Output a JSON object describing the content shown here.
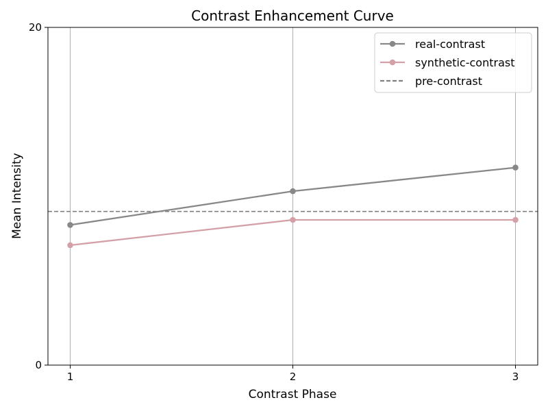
{
  "chart_data": {
    "type": "line",
    "title": "Contrast Enhancement Curve",
    "xlabel": "Contrast Phase",
    "ylabel": "Mean Intensity",
    "x": [
      1,
      2,
      3
    ],
    "x_tick_labels": [
      "1",
      "2",
      "3"
    ],
    "xlim": [
      0.9,
      3.1
    ],
    "ylim": [
      0,
      20
    ],
    "y_tick_labels": [
      "0",
      "20"
    ],
    "grid": "vertical",
    "legend": "top-right",
    "series": [
      {
        "name": "real-contrast",
        "values": [
          8.3,
          10.3,
          11.7
        ],
        "color": "#888888",
        "style": "solid",
        "marker": "circle"
      },
      {
        "name": "synthetic-contrast",
        "values": [
          7.1,
          8.6,
          8.6
        ],
        "color": "#d4a0a7",
        "style": "solid",
        "marker": "circle"
      }
    ],
    "reference_lines": [
      {
        "name": "pre-contrast",
        "y": 9.1,
        "color": "#808080",
        "style": "dashed"
      }
    ]
  }
}
